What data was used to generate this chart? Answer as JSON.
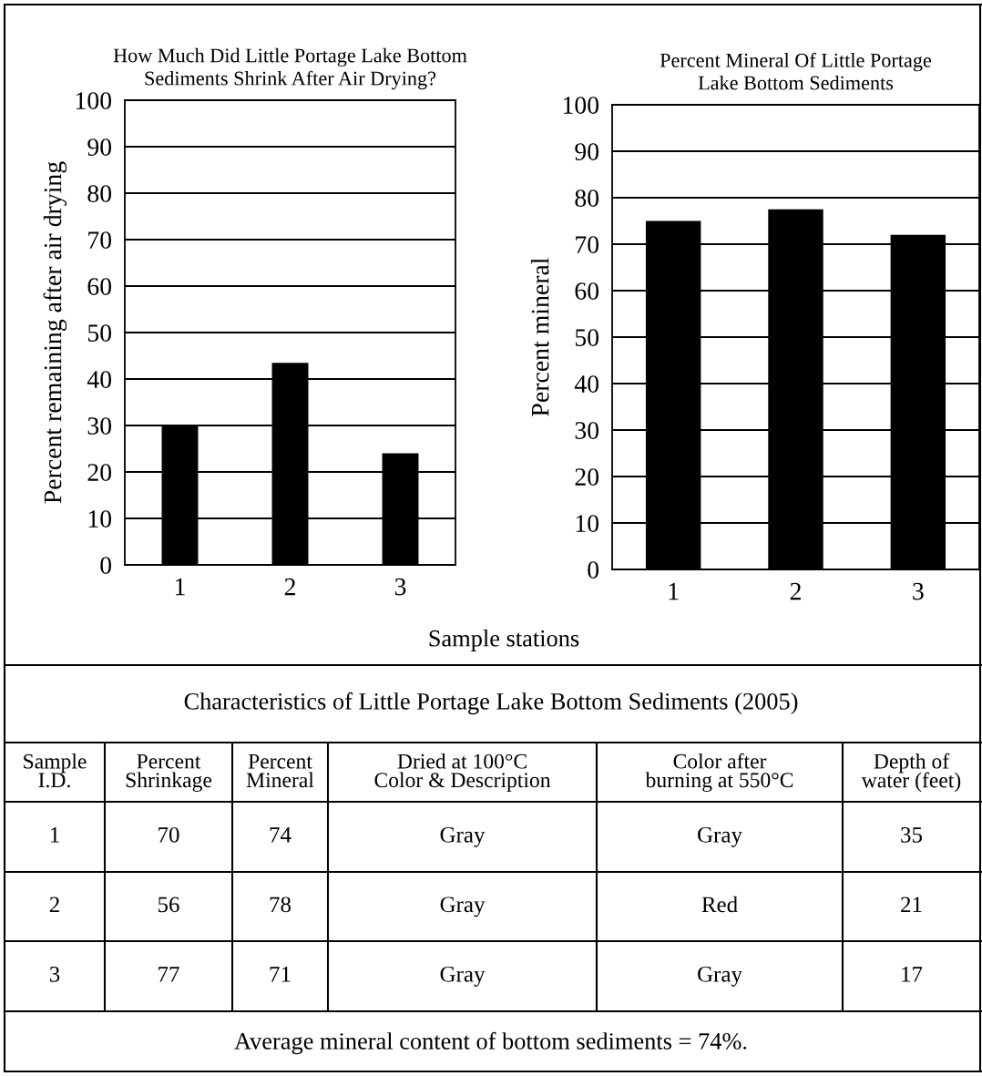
{
  "chart_data": [
    {
      "type": "bar",
      "title": "How Much Did Little Portage Lake Bottom\nSediments Shrink After Air Drying?",
      "ylabel": "Percent remaining after air drying",
      "xlabel": "Sample stations",
      "categories": [
        "1",
        "2",
        "3"
      ],
      "values": [
        30,
        43.5,
        24
      ],
      "color": "#000000",
      "ylim": [
        0,
        100
      ],
      "yticks": [
        0,
        10,
        20,
        30,
        40,
        50,
        60,
        70,
        80,
        90,
        100
      ],
      "grid": "y",
      "legend": false
    },
    {
      "type": "bar",
      "title": "Percent Mineral Of Little Portage\nLake Bottom Sediments",
      "ylabel": "Percent mineral",
      "categories": [
        "1",
        "2",
        "3"
      ],
      "values": [
        75,
        77.5,
        72
      ],
      "color": "#000000",
      "ylim": [
        0,
        100
      ],
      "yticks": [
        0,
        10,
        20,
        30,
        40,
        50,
        60,
        70,
        80,
        90,
        100
      ],
      "grid": "y",
      "legend": false
    },
    {
      "type": "other",
      "title": "Characteristics of Little Portage Lake Bottom Sediments (2005)",
      "categories": [
        "Sample\nI.D.",
        "Percent\nShrinkage",
        "Percent\nMineral",
        "Dried at 100°C\nColor & Description",
        "Color after\nburning at 550°C",
        "Depth of\nwater (feet)"
      ],
      "cell_labels": [
        [
          "1",
          "70",
          "74",
          "Gray",
          "Gray",
          "35"
        ],
        [
          "2",
          "56",
          "78",
          "Gray",
          "Red",
          "21"
        ],
        [
          "3",
          "77",
          "71",
          "Gray",
          "Gray",
          "17"
        ]
      ],
      "annotations": [
        "Average mineral content of bottom sediments = 74%."
      ]
    }
  ]
}
